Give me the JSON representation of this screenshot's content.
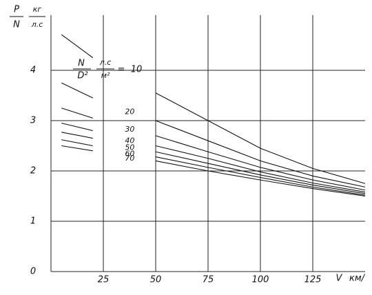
{
  "chart_data": {
    "type": "line",
    "y_label": {
      "top": "P",
      "bottom": "N",
      "unit_top": "кг",
      "unit_bottom": "л.с"
    },
    "x_label": {
      "symbol": "V",
      "unit": "км/"
    },
    "annotation": {
      "numerator": "N",
      "denominator": "D²",
      "unit_numerator": "л.с",
      "unit_denominator": "м²",
      "equals": "="
    },
    "x": [
      5,
      20,
      35,
      50,
      75,
      100,
      125,
      150
    ],
    "series": [
      {
        "name": "10",
        "color": "#111111",
        "values": [
          4.71,
          4.25,
          null,
          3.55,
          3.0,
          2.45,
          2.05,
          1.75
        ]
      },
      {
        "name": "20",
        "color": "#111111",
        "values": [
          3.75,
          3.45,
          null,
          3.0,
          2.6,
          2.2,
          1.9,
          1.68
        ]
      },
      {
        "name": "30",
        "color": "#111111",
        "values": [
          3.25,
          3.05,
          null,
          2.7,
          2.38,
          2.07,
          1.82,
          1.62
        ]
      },
      {
        "name": "40",
        "color": "#111111",
        "values": [
          2.95,
          2.8,
          null,
          2.5,
          2.25,
          1.98,
          1.76,
          1.58
        ]
      },
      {
        "name": "50",
        "color": "#111111",
        "values": [
          2.77,
          2.65,
          null,
          2.38,
          2.15,
          1.92,
          1.72,
          1.55
        ]
      },
      {
        "name": "60",
        "color": "#111111",
        "values": [
          2.62,
          2.5,
          null,
          2.28,
          2.07,
          1.87,
          1.68,
          1.52
        ]
      },
      {
        "name": "70",
        "color": "#111111",
        "values": [
          2.5,
          2.4,
          null,
          2.2,
          2.0,
          1.82,
          1.65,
          1.5
        ]
      }
    ],
    "xlim": [
      0,
      150
    ],
    "xticks": [
      25,
      50,
      75,
      100,
      125
    ],
    "ylim": [
      0,
      5.1
    ],
    "yticks": [
      0,
      1,
      2,
      3,
      4
    ],
    "grid": true
  }
}
